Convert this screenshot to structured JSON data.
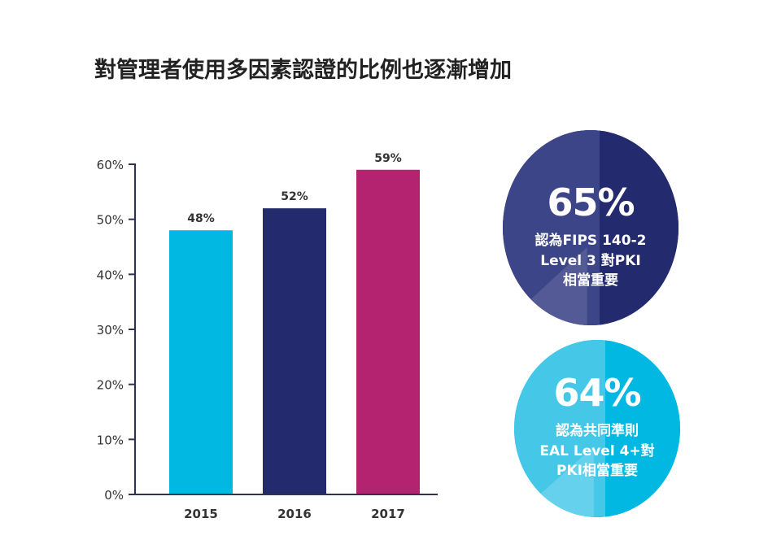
{
  "title": "對管理者使用多因素認證的比例也逐漸增加",
  "chart_data": {
    "type": "bar",
    "categories": [
      "2015",
      "2016",
      "2017"
    ],
    "values": [
      48,
      52,
      59
    ],
    "value_labels": [
      "48%",
      "52%",
      "59%"
    ],
    "colors": [
      "#00b8e1",
      "#232a6e",
      "#b3236f"
    ],
    "yticks": [
      "0%",
      "10%",
      "20%",
      "30%",
      "40%",
      "50%",
      "60%"
    ],
    "ylim": [
      0,
      60
    ],
    "grid": false
  },
  "stats": [
    {
      "value": "65%",
      "lines": [
        "認為FIPS 140-2",
        "Level 3 對PKI",
        "相當重要"
      ],
      "colors": {
        "main": "#232a6e",
        "left": "#3c4587",
        "wedge": "#545a95"
      }
    },
    {
      "value": "64%",
      "lines": [
        "認為共同準則",
        "EAL Level 4+對",
        "PKI相當重要"
      ],
      "colors": {
        "main": "#00b8e1",
        "left": "#45c7e8",
        "wedge": "#66d1ec"
      }
    }
  ]
}
